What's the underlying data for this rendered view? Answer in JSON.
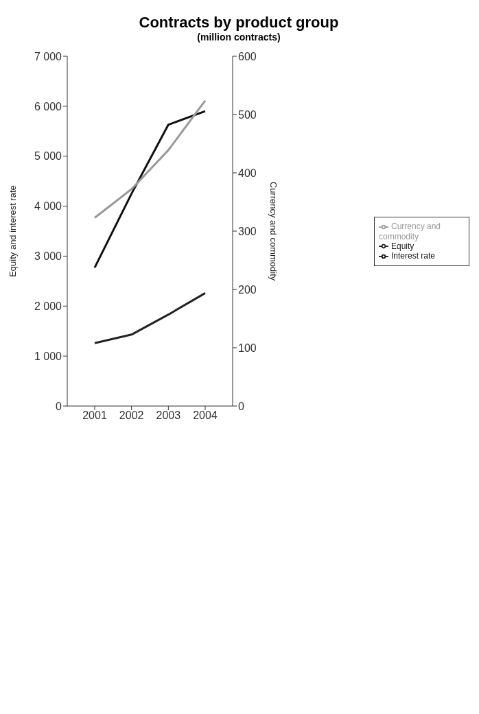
{
  "chart_data": {
    "type": "line",
    "title": "Contracts by product group",
    "subtitle": "(million contracts)",
    "categories": [
      "2001",
      "2002",
      "2003",
      "2004"
    ],
    "ylabel": "Equity and interest rate",
    "y2label": "Currency and commodity",
    "ylim": [
      0,
      7000
    ],
    "yticks": [
      {
        "value": 0,
        "label": "0"
      },
      {
        "value": 1000,
        "label": "1 000"
      },
      {
        "value": 2000,
        "label": "2 000"
      },
      {
        "value": 3000,
        "label": "3 000"
      },
      {
        "value": 4000,
        "label": "4 000"
      },
      {
        "value": 5000,
        "label": "5 000"
      },
      {
        "value": 6000,
        "label": "6 000"
      },
      {
        "value": 7000,
        "label": "7 000"
      }
    ],
    "y2lim": [
      0,
      600
    ],
    "y2ticks": [
      0,
      100,
      200,
      300,
      400,
      500,
      600
    ],
    "grid": false,
    "legend": "right",
    "marker": "none",
    "line_style": "solid",
    "series": [
      {
        "name": "Equity",
        "color": "#222222",
        "values": [
          1260,
          1430,
          1830,
          2260
        ]
      },
      {
        "name": "Interest rate",
        "color": "#111111",
        "values": [
          2770,
          4250,
          5630,
          5900
        ]
      },
      {
        "name": "Currency and commodity",
        "color": "#999999",
        "axis": "y2",
        "values": [
          323,
          372,
          439,
          524
        ]
      }
    ]
  }
}
